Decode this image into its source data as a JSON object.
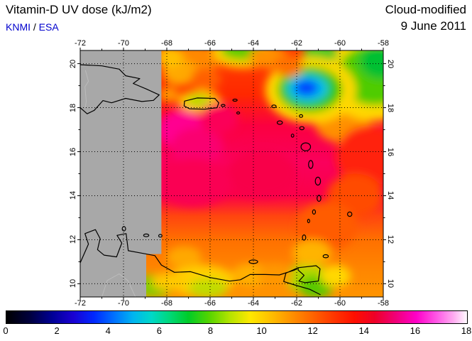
{
  "header": {
    "title": "Vitamin-D UV dose (kJ/m2)",
    "credit": {
      "org1": "KNMI",
      "separator": " / ",
      "org2": "ESA"
    },
    "mode": "Cloud-modified",
    "date": "9 June 2011"
  },
  "map": {
    "lon_min": -72,
    "lon_max": -58,
    "lat_min": 9.4,
    "lat_max": 20.6,
    "lon_ticks": [
      -72,
      -70,
      -68,
      -66,
      -64,
      -62,
      -60,
      -58
    ],
    "lat_ticks": [
      20,
      18,
      16,
      14,
      12,
      10
    ],
    "grid_lon": [
      -70,
      -68,
      -66,
      -64,
      -62,
      -60
    ],
    "grid_lat": [
      10,
      12,
      14,
      16,
      18,
      20
    ],
    "nodata_color": "#a8a8a8",
    "nodata_polygon": [
      [
        -72,
        20.6
      ],
      [
        -68.25,
        20.6
      ],
      [
        -68.25,
        11.35
      ],
      [
        -68.95,
        11.35
      ],
      [
        -68.95,
        9.4
      ],
      [
        -72,
        9.4
      ]
    ],
    "base_gradient": [
      {
        "lat": 20.6,
        "color": "#ff4000"
      },
      {
        "lat": 18.6,
        "color": "#ff2800"
      },
      {
        "lat": 17.2,
        "color": "#fb0040"
      },
      {
        "lat": 15.5,
        "color": "#fa005c"
      },
      {
        "lat": 14.0,
        "color": "#fb0048"
      },
      {
        "lat": 13.1,
        "color": "#ff4410"
      },
      {
        "lat": 12.0,
        "color": "#ff7000"
      },
      {
        "lat": 10.5,
        "color": "#ff8800"
      },
      {
        "lat": 9.4,
        "color": "#ff9400"
      }
    ],
    "blobs": [
      [
        -59.9,
        17.4,
        1.3,
        1.0,
        "#ff9000"
      ],
      [
        -58.4,
        19.4,
        2.4,
        2.0,
        "#ffd800"
      ],
      [
        -58.4,
        19.5,
        1.7,
        1.4,
        "#50cc00"
      ],
      [
        -58.1,
        20.1,
        1.0,
        0.8,
        "#00c030"
      ],
      [
        -60.9,
        20.5,
        0.8,
        0.5,
        "#50c820"
      ],
      [
        -61.35,
        18.8,
        2.1,
        1.5,
        "#ffd800"
      ],
      [
        -61.4,
        18.82,
        1.5,
        1.05,
        "#30c800"
      ],
      [
        -61.5,
        18.87,
        0.95,
        0.62,
        "#00c0e8"
      ],
      [
        -61.55,
        18.9,
        0.55,
        0.36,
        "#0040ff"
      ],
      [
        -64.5,
        20.5,
        1.5,
        0.7,
        "#ffd000"
      ],
      [
        -64.5,
        20.62,
        1.0,
        0.45,
        "#60cc00"
      ],
      [
        -63.3,
        20.3,
        0.9,
        0.5,
        "#ff9000"
      ],
      [
        -62.4,
        19.9,
        0.7,
        0.5,
        "#ff7000"
      ],
      [
        -66.7,
        20.1,
        1.0,
        0.8,
        "#ff8800"
      ],
      [
        -67.4,
        19.6,
        0.8,
        0.6,
        "#ffa800"
      ],
      [
        -67.85,
        20.3,
        0.6,
        0.5,
        "#ffc000"
      ],
      [
        -66.2,
        19.3,
        0.7,
        0.5,
        "#ff6000"
      ],
      [
        -67.9,
        18.6,
        0.45,
        0.35,
        "#ff9800"
      ],
      [
        -66.5,
        18.3,
        1.0,
        0.5,
        "#ffc800"
      ],
      [
        -66.55,
        18.32,
        0.55,
        0.28,
        "#b8d800"
      ],
      [
        -67.3,
        17.0,
        1.1,
        0.9,
        "#ff0090"
      ],
      [
        -66.6,
        16.2,
        1.2,
        0.9,
        "#fa0070"
      ],
      [
        -65.6,
        17.5,
        0.9,
        0.7,
        "#fb0058"
      ],
      [
        -63.6,
        15.0,
        1.6,
        1.1,
        "#f80048"
      ],
      [
        -66.8,
        14.6,
        1.8,
        1.1,
        "#fa0052"
      ],
      [
        -58.6,
        15.8,
        1.6,
        1.4,
        "#ff2410"
      ],
      [
        -59.3,
        14.0,
        1.3,
        1.0,
        "#ff4c00"
      ],
      [
        -60.6,
        12.6,
        1.4,
        1.1,
        "#ff5c00"
      ],
      [
        -66.4,
        10.15,
        1.5,
        0.7,
        "#ffd000"
      ],
      [
        -66.1,
        9.8,
        0.9,
        0.45,
        "#c0dc00"
      ],
      [
        -64.1,
        10.4,
        0.9,
        0.5,
        "#ffb000"
      ],
      [
        -61.5,
        10.25,
        1.0,
        0.7,
        "#b0d800"
      ],
      [
        -61.1,
        9.85,
        0.8,
        0.5,
        "#58c800"
      ],
      [
        -60.2,
        10.35,
        0.7,
        0.5,
        "#ffd800"
      ],
      [
        -68.6,
        9.9,
        0.9,
        0.5,
        "#80cc00"
      ],
      [
        -67.9,
        10.1,
        0.8,
        0.4,
        "#ffc800"
      ],
      [
        -63.0,
        10.4,
        0.8,
        0.5,
        "#ff9800"
      ],
      [
        -67.2,
        11.2,
        0.8,
        0.5,
        "#ffa800"
      ],
      [
        -61.3,
        11.4,
        0.9,
        0.6,
        "#ffb400"
      ]
    ],
    "coastlines": [
      {
        "name": "hispaniola",
        "closed": false,
        "points": [
          [
            -72,
            19.95
          ],
          [
            -71.0,
            19.9
          ],
          [
            -70.2,
            19.75
          ],
          [
            -69.9,
            19.45
          ],
          [
            -69.25,
            19.32
          ],
          [
            -69.55,
            19.1
          ],
          [
            -68.95,
            18.85
          ],
          [
            -68.35,
            18.58
          ],
          [
            -68.62,
            18.33
          ],
          [
            -69.15,
            18.28
          ],
          [
            -69.9,
            18.42
          ],
          [
            -70.55,
            18.22
          ],
          [
            -70.95,
            18.32
          ],
          [
            -71.35,
            17.88
          ],
          [
            -71.68,
            17.72
          ],
          [
            -72,
            18.0
          ]
        ]
      },
      {
        "name": "puerto-rico",
        "closed": true,
        "points": [
          [
            -67.18,
            18.3
          ],
          [
            -66.6,
            18.44
          ],
          [
            -65.78,
            18.42
          ],
          [
            -65.6,
            18.22
          ],
          [
            -65.68,
            18.0
          ],
          [
            -66.25,
            17.93
          ],
          [
            -66.95,
            17.95
          ],
          [
            -67.2,
            18.08
          ]
        ]
      },
      {
        "name": "south-america",
        "closed": false,
        "points": [
          [
            -72,
            10.95
          ],
          [
            -71.62,
            11.8
          ],
          [
            -71.78,
            12.28
          ],
          [
            -71.3,
            12.46
          ],
          [
            -71.08,
            12.05
          ],
          [
            -71.2,
            11.55
          ],
          [
            -70.9,
            11.3
          ],
          [
            -70.32,
            11.22
          ],
          [
            -70.08,
            11.85
          ],
          [
            -70.3,
            12.2
          ],
          [
            -69.88,
            12.28
          ],
          [
            -69.78,
            11.5
          ],
          [
            -69.1,
            11.38
          ],
          [
            -68.55,
            11.28
          ],
          [
            -68.25,
            10.85
          ],
          [
            -67.65,
            10.52
          ],
          [
            -66.9,
            10.55
          ],
          [
            -66.0,
            10.28
          ],
          [
            -65.1,
            10.12
          ],
          [
            -64.6,
            10.18
          ],
          [
            -64.15,
            10.42
          ],
          [
            -63.45,
            10.42
          ],
          [
            -62.8,
            10.4
          ],
          [
            -62.1,
            10.62
          ],
          [
            -61.95,
            10.72
          ],
          [
            -62.5,
            10.48
          ],
          [
            -62.6,
            10.1
          ],
          [
            -62.1,
            9.95
          ],
          [
            -61.4,
            9.75
          ],
          [
            -60.9,
            9.5
          ]
        ]
      },
      {
        "name": "trinidad",
        "closed": true,
        "points": [
          [
            -61.93,
            10.73
          ],
          [
            -61.1,
            10.82
          ],
          [
            -60.92,
            10.68
          ],
          [
            -61.0,
            10.12
          ],
          [
            -61.6,
            10.05
          ],
          [
            -61.9,
            10.12
          ],
          [
            -61.66,
            10.38
          ],
          [
            -61.93,
            10.62
          ]
        ]
      }
    ],
    "islands": [
      [
        -63.05,
        18.06,
        0.1,
        0.06
      ],
      [
        -62.78,
        17.32,
        0.12,
        0.08
      ],
      [
        -61.8,
        17.62,
        0.08,
        0.06
      ],
      [
        -61.76,
        17.07,
        0.1,
        0.07
      ],
      [
        -62.19,
        16.73,
        0.06,
        0.07
      ],
      [
        -61.58,
        16.22,
        0.22,
        0.18
      ],
      [
        -61.35,
        15.42,
        0.1,
        0.18
      ],
      [
        -61.02,
        14.66,
        0.12,
        0.18
      ],
      [
        -60.97,
        13.88,
        0.09,
        0.14
      ],
      [
        -61.2,
        13.26,
        0.07,
        0.1
      ],
      [
        -61.45,
        12.85,
        0.05,
        0.08
      ],
      [
        -61.66,
        12.1,
        0.08,
        0.12
      ],
      [
        -59.55,
        13.16,
        0.1,
        0.1
      ],
      [
        -60.66,
        11.25,
        0.12,
        0.07
      ],
      [
        -64.0,
        11.0,
        0.2,
        0.08
      ],
      [
        -64.7,
        17.76,
        0.07,
        0.05
      ],
      [
        -64.85,
        18.34,
        0.1,
        0.05
      ],
      [
        -65.4,
        18.1,
        0.09,
        0.05
      ],
      [
        -68.95,
        12.2,
        0.12,
        0.06
      ],
      [
        -68.3,
        12.18,
        0.08,
        0.06
      ],
      [
        -69.98,
        12.5,
        0.08,
        0.1
      ]
    ],
    "borders": [
      {
        "name": "haiti-dr-border",
        "points": [
          [
            -71.76,
            19.7
          ],
          [
            -71.62,
            19.2
          ],
          [
            -71.78,
            18.95
          ],
          [
            -71.72,
            18.3
          ],
          [
            -71.76,
            18.03
          ]
        ]
      },
      {
        "name": "venezuela-border",
        "points": [
          [
            -71.0,
            9.4
          ],
          [
            -70.75,
            10.15
          ],
          [
            -70.2,
            10.45
          ],
          [
            -69.8,
            10.15
          ],
          [
            -69.45,
            9.4
          ]
        ]
      }
    ]
  },
  "colorbar": {
    "min": 0,
    "max": 18,
    "ticks": [
      0,
      2,
      4,
      6,
      8,
      10,
      12,
      14,
      16,
      18
    ],
    "stops": [
      [
        0,
        "#000000"
      ],
      [
        0.05,
        "#00003c"
      ],
      [
        0.1,
        "#000096"
      ],
      [
        0.145,
        "#1a00d2"
      ],
      [
        0.19,
        "#0028ff"
      ],
      [
        0.235,
        "#0073ff"
      ],
      [
        0.275,
        "#00b4f0"
      ],
      [
        0.315,
        "#00d8c8"
      ],
      [
        0.355,
        "#00d878"
      ],
      [
        0.395,
        "#00cc28"
      ],
      [
        0.44,
        "#55d400"
      ],
      [
        0.485,
        "#b4e400"
      ],
      [
        0.53,
        "#ffe800"
      ],
      [
        0.575,
        "#ffbe00"
      ],
      [
        0.62,
        "#ff9000"
      ],
      [
        0.665,
        "#ff6400"
      ],
      [
        0.71,
        "#ff3700"
      ],
      [
        0.755,
        "#ff0f00"
      ],
      [
        0.8,
        "#ee0028"
      ],
      [
        0.845,
        "#f00078"
      ],
      [
        0.89,
        "#ff00c8"
      ],
      [
        0.935,
        "#ff5ae6"
      ],
      [
        0.97,
        "#ffaaf0"
      ],
      [
        1,
        "#fffaff"
      ]
    ]
  }
}
